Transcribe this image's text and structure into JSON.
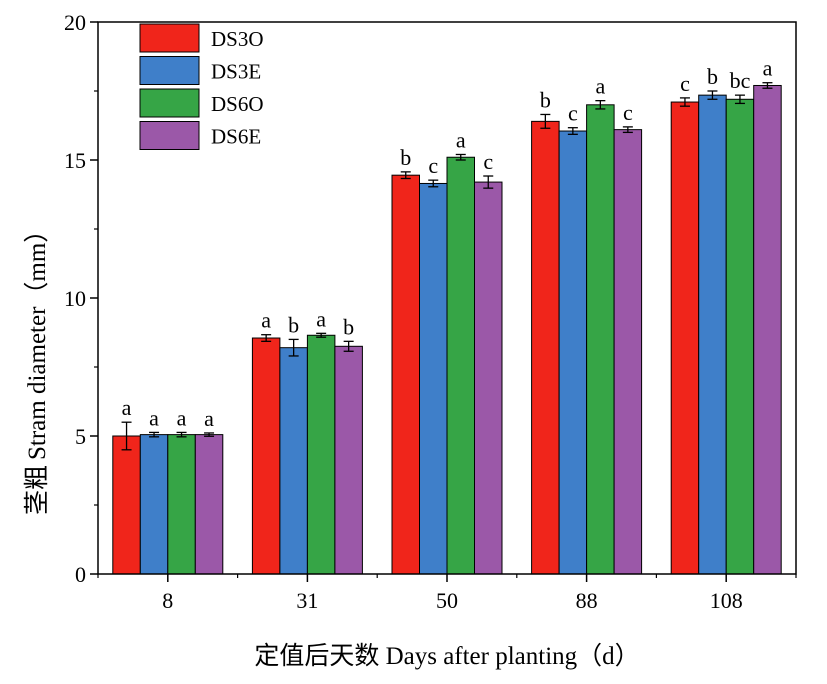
{
  "chart_data": {
    "type": "bar",
    "categories": [
      "8",
      "31",
      "50",
      "88",
      "108"
    ],
    "series": [
      {
        "name": "DS3O",
        "color": "#f0251b",
        "values": [
          5.0,
          8.55,
          14.45,
          16.4,
          17.1
        ],
        "errors": [
          0.5,
          0.12,
          0.12,
          0.25,
          0.15
        ],
        "letters": [
          "a",
          "a",
          "b",
          "b",
          "c"
        ]
      },
      {
        "name": "DS3E",
        "color": "#3f7fc9",
        "values": [
          5.05,
          8.2,
          14.15,
          16.05,
          17.35
        ],
        "errors": [
          0.08,
          0.3,
          0.12,
          0.12,
          0.15
        ],
        "letters": [
          "a",
          "b",
          "c",
          "c",
          "b"
        ]
      },
      {
        "name": "DS6O",
        "color": "#36a546",
        "values": [
          5.05,
          8.65,
          15.1,
          17.0,
          17.2
        ],
        "errors": [
          0.08,
          0.07,
          0.1,
          0.15,
          0.15
        ],
        "letters": [
          "a",
          "a",
          "a",
          "a",
          "bc"
        ]
      },
      {
        "name": "DS6E",
        "color": "#9b58a8",
        "values": [
          5.05,
          8.25,
          14.2,
          16.1,
          17.7
        ],
        "errors": [
          0.06,
          0.18,
          0.22,
          0.1,
          0.1
        ],
        "letters": [
          "a",
          "b",
          "c",
          "c",
          "a"
        ]
      }
    ],
    "y_ticks": [
      "0",
      "5",
      "10",
      "15",
      "20"
    ],
    "ylim": [
      0,
      20
    ],
    "ylabel_cn": "茎粗",
    "ylabel_en": "Stram diameter（mm）",
    "xlabel": "定值后天数  Days after planting（d）",
    "legend_position": "top-left",
    "grid": false,
    "colors": {
      "ylabel_cn": "#8a6a1c",
      "axis": "#000000"
    }
  }
}
